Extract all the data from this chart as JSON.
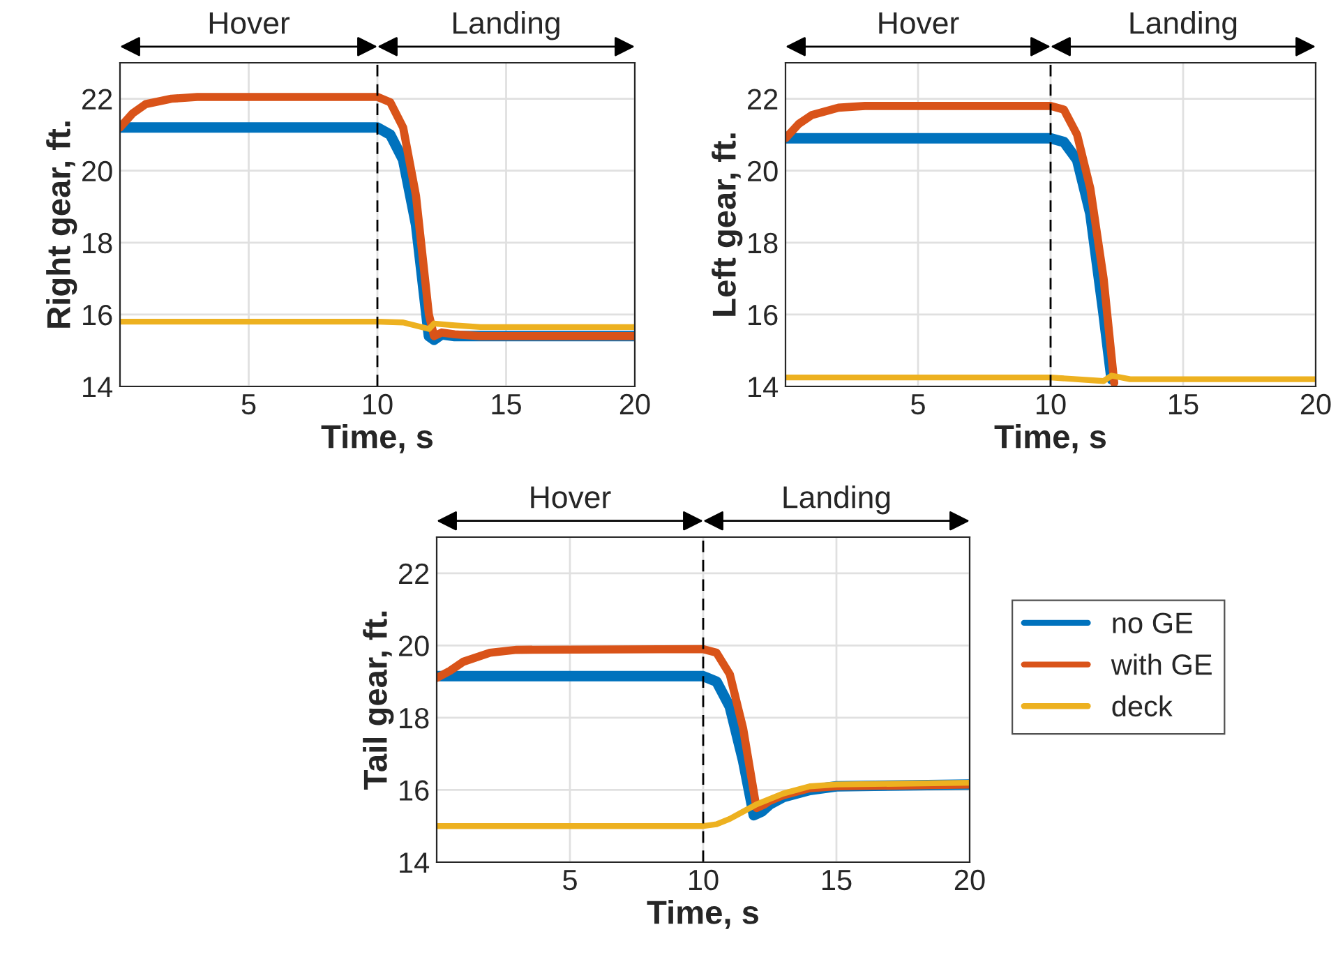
{
  "chart_data": [
    {
      "type": "line",
      "xlabel": "Time, s",
      "ylabel": "Right gear, ft.",
      "xlim": [
        0,
        20
      ],
      "ylim": [
        14,
        23
      ],
      "xticks": [
        5,
        10,
        15,
        20
      ],
      "yticks": [
        14,
        16,
        18,
        20,
        22
      ],
      "grid": true,
      "legend": false,
      "line_style": "solid",
      "marker": "none",
      "ref_lines": [
        {
          "axis": "x",
          "value": 10,
          "line_style": "dashed",
          "color": "#000000"
        }
      ],
      "annotations": [
        "Hover",
        "Landing"
      ],
      "series": [
        {
          "color": "#0072bd",
          "x": [
            0,
            10,
            10.5,
            11,
            11.5,
            12,
            12.2,
            12.5,
            13,
            20
          ],
          "values": [
            21.2,
            21.2,
            21.0,
            20.3,
            18.5,
            15.4,
            15.3,
            15.45,
            15.4,
            15.4
          ]
        },
        {
          "color": "#d95319",
          "x": [
            0,
            0.5,
            1,
            2,
            3,
            10,
            10.5,
            11,
            11.5,
            12,
            12.2,
            12.5,
            13,
            14,
            20
          ],
          "values": [
            21.2,
            21.6,
            21.85,
            22.0,
            22.05,
            22.05,
            21.9,
            21.2,
            19.3,
            16.0,
            15.4,
            15.5,
            15.45,
            15.4,
            15.4
          ]
        },
        {
          "color": "#edb120",
          "x": [
            0,
            10,
            11,
            12,
            12.2,
            13,
            14,
            20
          ],
          "values": [
            15.8,
            15.8,
            15.78,
            15.6,
            15.75,
            15.7,
            15.65,
            15.65
          ]
        }
      ]
    },
    {
      "type": "line",
      "xlabel": "Time, s",
      "ylabel": "Left gear, ft.",
      "xlim": [
        0,
        20
      ],
      "ylim": [
        14,
        23
      ],
      "xticks": [
        5,
        10,
        15,
        20
      ],
      "yticks": [
        14,
        16,
        18,
        20,
        22
      ],
      "grid": true,
      "legend": false,
      "line_style": "solid",
      "marker": "none",
      "ref_lines": [
        {
          "axis": "x",
          "value": 10,
          "line_style": "dashed",
          "color": "#000000"
        }
      ],
      "annotations": [
        "Hover",
        "Landing"
      ],
      "series": [
        {
          "color": "#0072bd",
          "x": [
            0,
            10,
            10.5,
            11,
            11.5,
            12,
            12.3
          ],
          "values": [
            20.9,
            20.9,
            20.8,
            20.3,
            18.8,
            16.0,
            14.2
          ]
        },
        {
          "color": "#d95319",
          "x": [
            0,
            0.5,
            1,
            2,
            3,
            10,
            10.5,
            11,
            11.5,
            12,
            12.4
          ],
          "values": [
            20.9,
            21.3,
            21.55,
            21.75,
            21.8,
            21.8,
            21.7,
            21.0,
            19.5,
            17.0,
            14.1
          ]
        },
        {
          "color": "#edb120",
          "x": [
            0,
            10,
            12,
            12.3,
            13,
            20
          ],
          "values": [
            14.25,
            14.25,
            14.15,
            14.3,
            14.2,
            14.2
          ]
        }
      ]
    },
    {
      "type": "line",
      "xlabel": "Time, s",
      "ylabel": "Tail gear, ft.",
      "xlim": [
        0,
        20
      ],
      "ylim": [
        14,
        23
      ],
      "xticks": [
        5,
        10,
        15,
        20
      ],
      "yticks": [
        14,
        16,
        18,
        20,
        22
      ],
      "grid": true,
      "legend": "right",
      "line_style": "solid",
      "marker": "none",
      "ref_lines": [
        {
          "axis": "x",
          "value": 10,
          "line_style": "dashed",
          "color": "#000000"
        }
      ],
      "annotations": [
        "Hover",
        "Landing"
      ],
      "series": [
        {
          "name": "no GE",
          "color": "#0072bd",
          "x": [
            0,
            10,
            10.5,
            11,
            11.5,
            11.9,
            12.2,
            12.5,
            13,
            14,
            15,
            20
          ],
          "values": [
            19.15,
            19.15,
            19.0,
            18.3,
            16.8,
            15.3,
            15.4,
            15.6,
            15.8,
            16.0,
            16.1,
            16.15
          ]
        },
        {
          "name": "with GE",
          "color": "#d95319",
          "x": [
            0,
            0.5,
            1,
            2,
            3,
            10,
            10.5,
            11,
            11.5,
            12,
            12.3,
            12.5,
            13,
            14,
            15,
            20
          ],
          "values": [
            19.1,
            19.3,
            19.55,
            19.8,
            19.88,
            19.9,
            19.8,
            19.2,
            17.7,
            15.5,
            15.6,
            15.7,
            15.85,
            16.05,
            16.1,
            16.15
          ]
        },
        {
          "name": "deck",
          "color": "#edb120",
          "x": [
            0,
            10,
            10.5,
            11,
            11.5,
            12,
            12.5,
            13,
            14,
            15,
            20
          ],
          "values": [
            15.0,
            15.0,
            15.05,
            15.2,
            15.4,
            15.6,
            15.75,
            15.9,
            16.1,
            16.15,
            16.2
          ]
        }
      ]
    }
  ]
}
